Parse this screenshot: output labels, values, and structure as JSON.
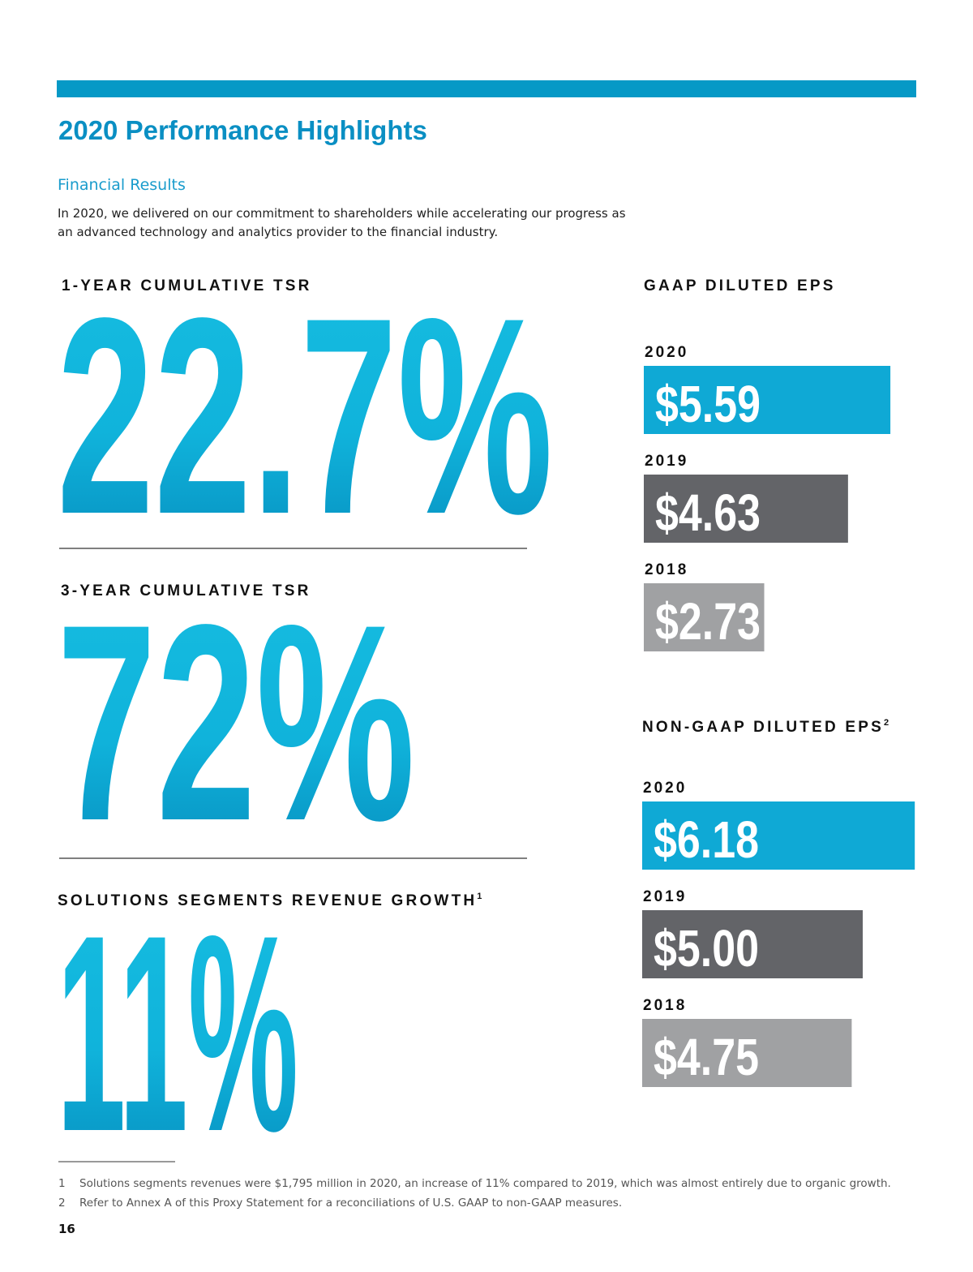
{
  "header": {
    "title": "2020 Performance Highlights",
    "section": "Financial Results",
    "intro": [
      "In 2020, we delivered on our commitment to shareholders while accelerating our progress as",
      "an advanced technology and analytics provider to the financial industry."
    ]
  },
  "metrics": [
    {
      "label": "1-YEAR CUMULATIVE TSR",
      "value": "22.7%"
    },
    {
      "label": "3-YEAR CUMULATIVE TSR",
      "value": "72%"
    },
    {
      "label": "SOLUTIONS SEGMENTS REVENUE GROWTH",
      "note": "1",
      "value": "11%"
    }
  ],
  "chart_data": [
    {
      "type": "bar",
      "title": "GAAP DILUTED EPS",
      "categories": [
        "2020",
        "2019",
        "2018"
      ],
      "values": [
        5.59,
        4.63,
        2.73
      ],
      "value_labels": [
        "$5.59",
        "$4.63",
        "$2.73"
      ],
      "colors": [
        "#0fa9d5",
        "#636468",
        "#a0a1a3"
      ]
    },
    {
      "type": "bar",
      "title": "NON-GAAP DILUTED EPS",
      "title_note": "2",
      "categories": [
        "2020",
        "2019",
        "2018"
      ],
      "values": [
        6.18,
        5.0,
        4.75
      ],
      "value_labels": [
        "$6.18",
        "$5.00",
        "$4.75"
      ],
      "colors": [
        "#0fa9d5",
        "#636468",
        "#a0a1a3"
      ]
    }
  ],
  "footnotes": [
    {
      "number": "1",
      "text": "Solutions segments revenues were $1,795 million in 2020, an increase of 11% compared to 2019, which was almost entirely due to organic growth."
    },
    {
      "number": "2",
      "text": "Refer to Annex A of this Proxy Statement for a reconciliations of U.S. GAAP to non-GAAP measures."
    }
  ],
  "page_number": "16"
}
